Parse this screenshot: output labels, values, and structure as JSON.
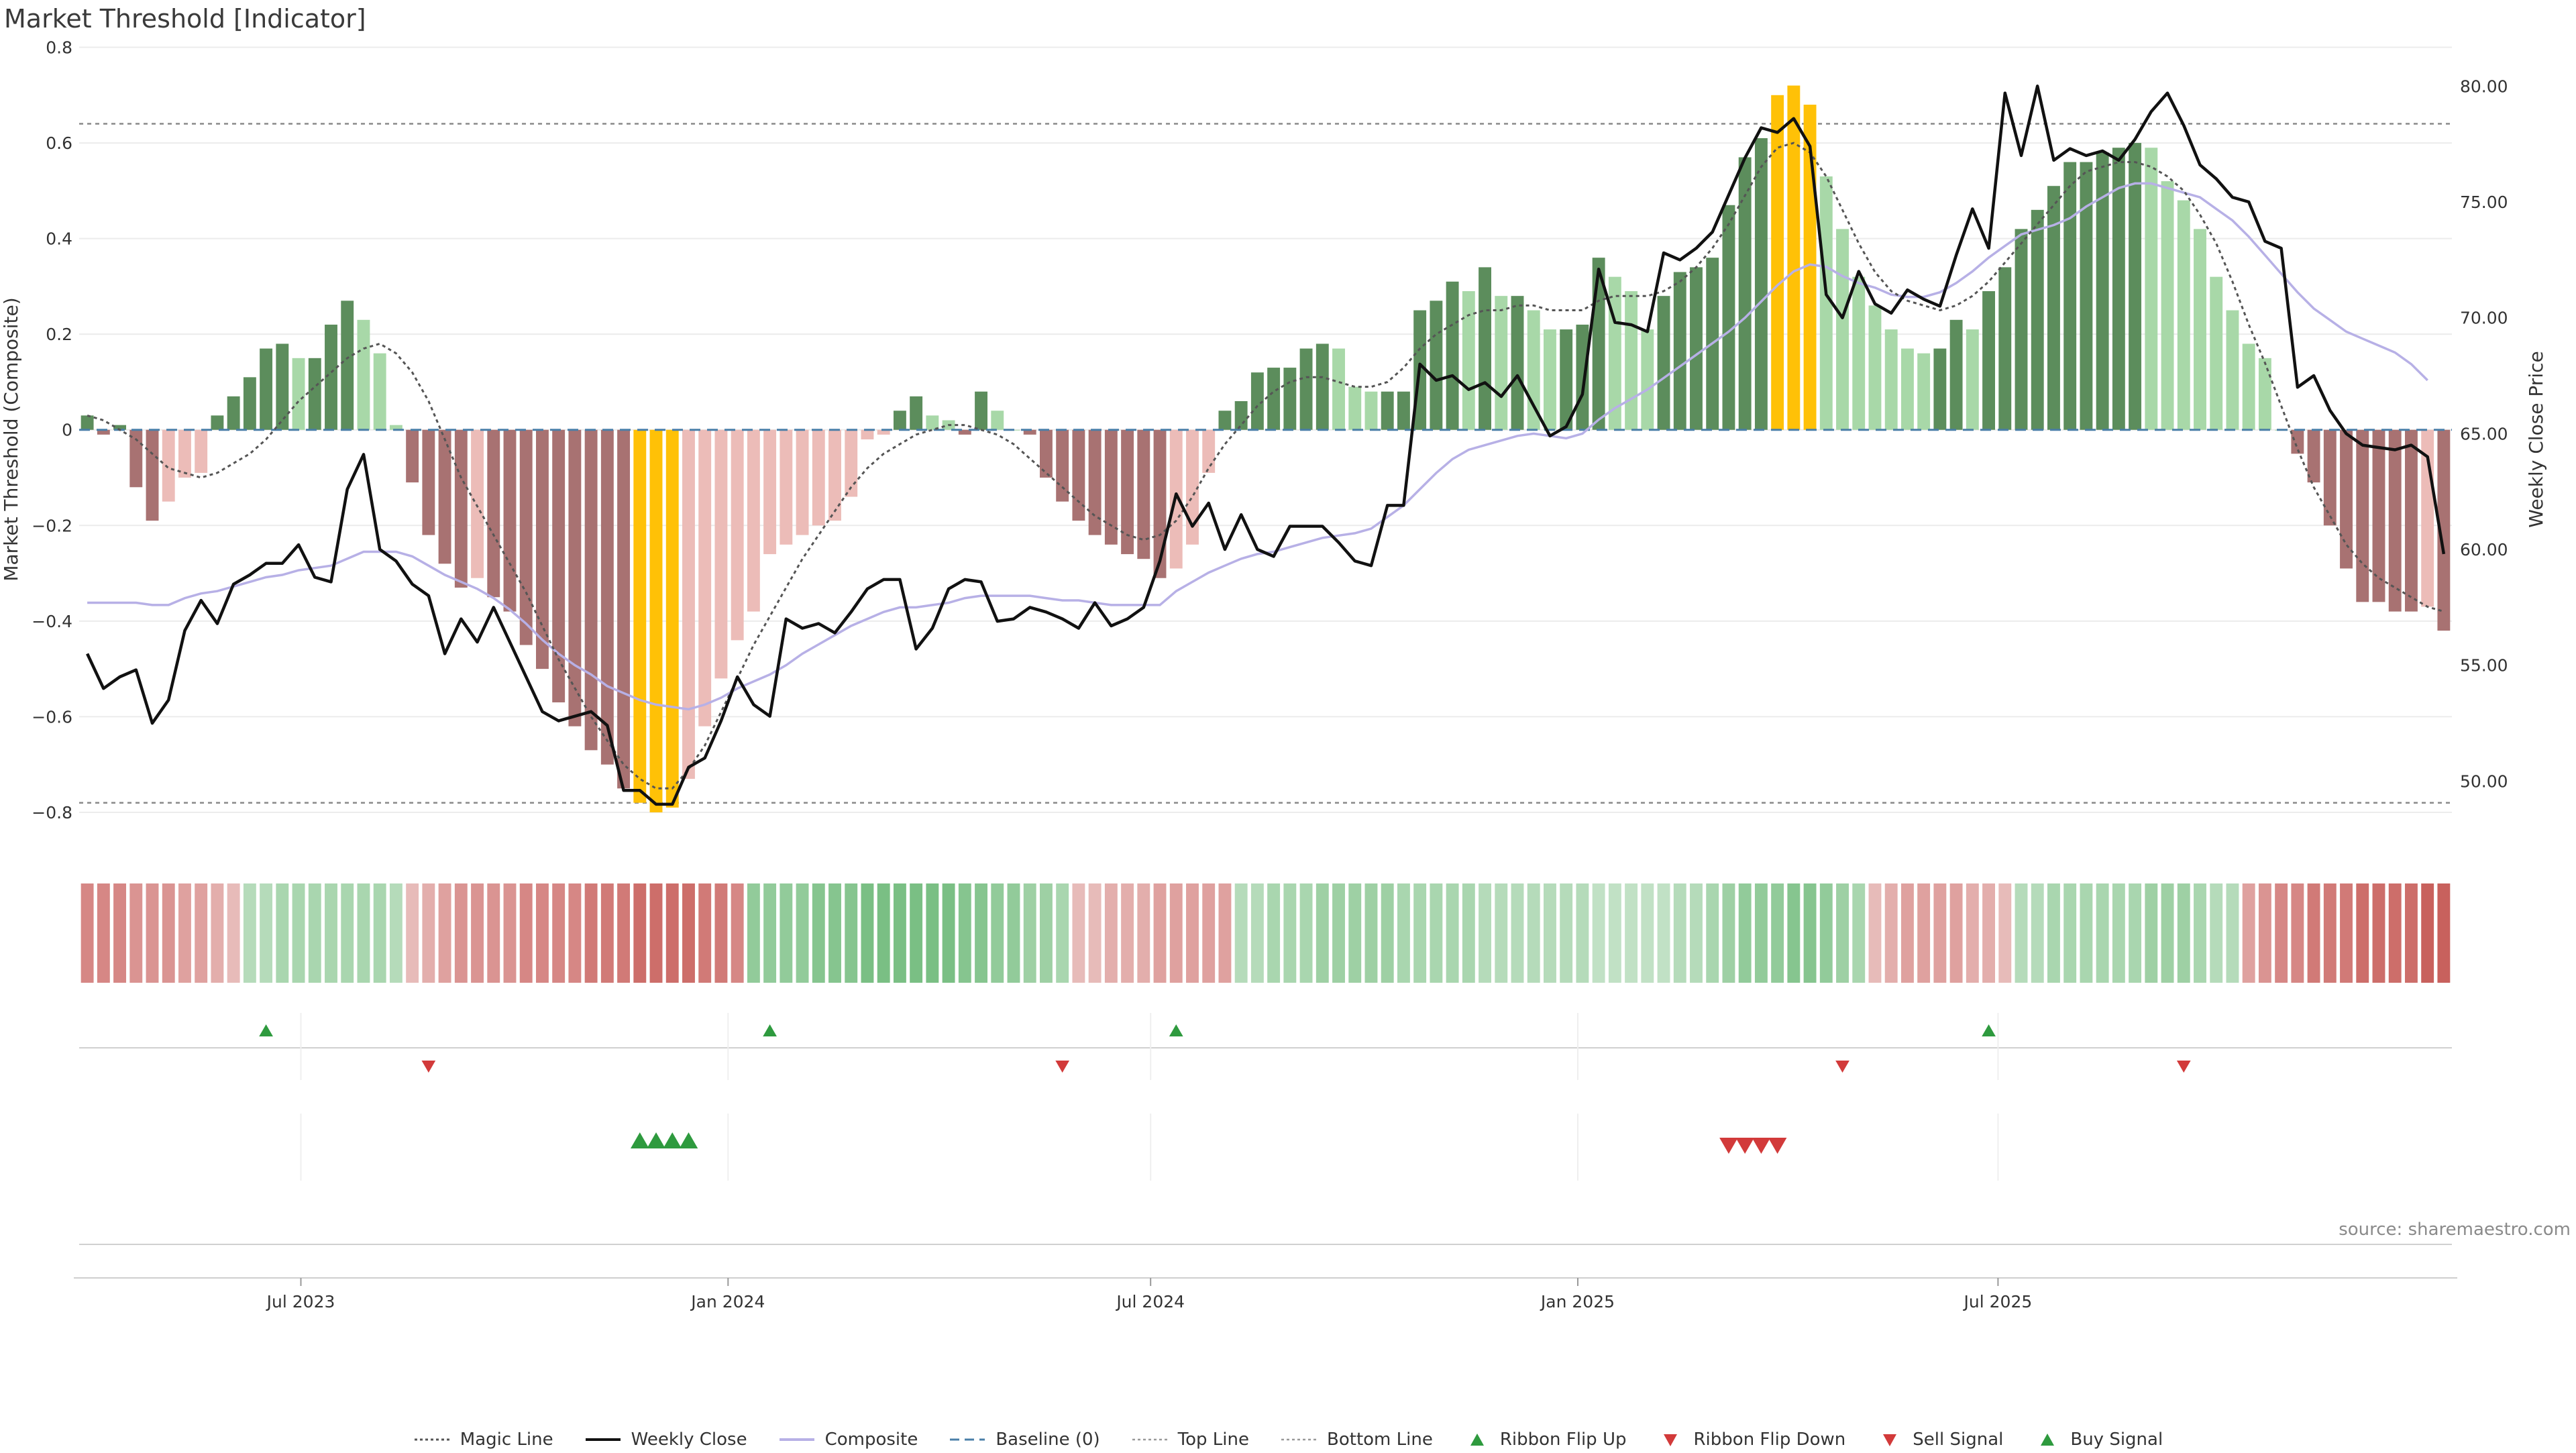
{
  "title": "Market Threshold [Indicator]",
  "source": "source: sharemaestro.com",
  "colors": {
    "strong_pos": "#5c8d5c",
    "weak_pos": "#a8d8a8",
    "strong_neg": "#a87272",
    "weak_neg": "#ecbcb8",
    "extreme": "#ffc107",
    "weekly_close": "#111111",
    "composite": "#b7b0e6",
    "magic_line": "#555555",
    "baseline": "#4a7fa8",
    "buy": "#2e9a3e",
    "sell": "#d23a3a"
  },
  "legend": [
    {
      "label": "Magic Line",
      "icon": "dotted-line-icon"
    },
    {
      "label": "Weekly Close",
      "icon": "solid-line-icon"
    },
    {
      "label": "Composite",
      "icon": "lavender-line-icon"
    },
    {
      "label": "Baseline (0)",
      "icon": "dashed-line-icon"
    },
    {
      "label": "Top Line",
      "icon": "dotted-gray-line-icon"
    },
    {
      "label": "Bottom Line",
      "icon": "dotted-gray-line-icon"
    },
    {
      "label": "Ribbon Flip Up",
      "icon": "triangle-up-icon"
    },
    {
      "label": "Ribbon Flip Down",
      "icon": "triangle-down-icon"
    },
    {
      "label": "Sell Signal",
      "icon": "triangle-down-icon"
    },
    {
      "label": "Buy Signal",
      "icon": "triangle-up-icon"
    }
  ],
  "chart_data": {
    "type": "bar",
    "start_date": "2023-03-31",
    "left_axis": {
      "label": "Market Threshold (Composite)",
      "ylim": [
        -0.88,
        0.84
      ],
      "ticks": [
        -0.8,
        -0.6,
        -0.4,
        -0.2,
        0,
        0.2,
        0.4,
        0.6,
        0.8
      ],
      "tick_labels": [
        "−0.8",
        "−0.6",
        "−0.4",
        "−0.2",
        "0",
        "0.2",
        "0.4",
        "0.6",
        "0.8"
      ]
    },
    "right_axis": {
      "label": "Weekly Close Price",
      "ylim": [
        47.0,
        82.5
      ],
      "ticks": [
        50,
        55,
        60,
        65,
        70,
        75,
        80
      ],
      "tick_labels": [
        "50.00",
        "55.00",
        "60.00",
        "65.00",
        "70.00",
        "75.00",
        "80.00"
      ]
    },
    "x_ticks": [
      {
        "date": "2023-07-01",
        "label": "Jul 2023"
      },
      {
        "date": "2024-01-01",
        "label": "Jan 2024"
      },
      {
        "date": "2024-07-01",
        "label": "Jul 2024"
      },
      {
        "date": "2025-01-01",
        "label": "Jan 2025"
      },
      {
        "date": "2025-07-01",
        "label": "Jul 2025"
      }
    ],
    "top_line": 0.64,
    "bottom_line": -0.78,
    "baseline": 0,
    "series": [
      {
        "name": "Market Threshold",
        "key": "composite_bars",
        "values": [
          0.03,
          -0.01,
          0.01,
          -0.12,
          -0.19,
          -0.15,
          -0.1,
          -0.09,
          0.03,
          0.07,
          0.11,
          0.17,
          0.18,
          0.15,
          0.15,
          0.22,
          0.27,
          0.23,
          0.16,
          0.01,
          -0.11,
          -0.22,
          -0.28,
          -0.33,
          -0.31,
          -0.35,
          -0.38,
          -0.45,
          -0.5,
          -0.57,
          -0.62,
          -0.67,
          -0.7,
          -0.75,
          -0.78,
          -0.8,
          -0.79,
          -0.73,
          -0.62,
          -0.52,
          -0.44,
          -0.38,
          -0.26,
          -0.24,
          -0.22,
          -0.2,
          -0.19,
          -0.14,
          -0.02,
          -0.01,
          0.04,
          0.07,
          0.03,
          0.02,
          -0.01,
          0.08,
          0.04,
          0.0,
          -0.01,
          -0.1,
          -0.15,
          -0.19,
          -0.22,
          -0.24,
          -0.26,
          -0.27,
          -0.31,
          -0.29,
          -0.24,
          -0.09,
          0.04,
          0.06,
          0.12,
          0.13,
          0.13,
          0.17,
          0.18,
          0.17,
          0.09,
          0.08,
          0.08,
          0.08,
          0.25,
          0.27,
          0.31,
          0.29,
          0.34,
          0.28,
          0.28,
          0.25,
          0.21,
          0.21,
          0.22,
          0.36,
          0.32,
          0.29,
          0.21,
          0.28,
          0.33,
          0.34,
          0.36,
          0.47,
          0.57,
          0.61,
          0.7,
          0.72,
          0.68,
          0.53,
          0.42,
          0.32,
          0.26,
          0.21,
          0.17,
          0.16,
          0.17,
          0.23,
          0.21,
          0.29,
          0.34,
          0.42,
          0.46,
          0.51,
          0.56,
          0.56,
          0.58,
          0.59,
          0.6,
          0.59,
          0.52,
          0.48,
          0.42,
          0.32,
          0.25,
          0.18,
          0.15,
          0.0,
          -0.05,
          -0.11,
          -0.2,
          -0.29,
          -0.36,
          -0.36,
          -0.38,
          -0.38,
          -0.37,
          -0.42
        ]
      },
      {
        "name": "Weekly Close",
        "key": "weekly_close",
        "values": [
          55.5,
          54.0,
          54.5,
          54.8,
          52.5,
          53.5,
          56.5,
          57.8,
          56.8,
          58.5,
          58.9,
          59.4,
          59.4,
          60.2,
          58.8,
          58.6,
          62.6,
          64.1,
          60.0,
          59.5,
          58.5,
          58.0,
          55.5,
          57.0,
          56.0,
          57.5,
          56.0,
          54.5,
          53.0,
          52.6,
          52.8,
          53.0,
          52.4,
          49.6,
          49.6,
          49.0,
          49.0,
          50.6,
          51.0,
          52.6,
          54.5,
          53.3,
          52.8,
          57.0,
          56.6,
          56.8,
          56.4,
          57.3,
          58.3,
          58.7,
          58.7,
          55.7,
          56.6,
          58.3,
          58.7,
          58.6,
          56.9,
          57.0,
          57.5,
          57.3,
          57.0,
          56.6,
          57.7,
          56.7,
          57.0,
          57.5,
          59.5,
          62.4,
          61.0,
          62.0,
          60.0,
          61.5,
          60.0,
          59.7,
          61.0,
          61.0,
          61.0,
          60.3,
          59.5,
          59.3,
          61.9,
          61.9,
          68.0,
          67.3,
          67.5,
          66.9,
          67.2,
          66.6,
          67.5,
          66.2,
          64.9,
          65.3,
          66.7,
          72.1,
          69.8,
          69.7,
          69.4,
          72.8,
          72.5,
          73.0,
          73.7,
          75.3,
          76.9,
          78.2,
          78.0,
          78.6,
          77.4,
          71.0,
          70.0,
          72.0,
          70.6,
          70.2,
          71.2,
          70.8,
          70.5,
          72.7,
          74.7,
          73.0,
          79.7,
          77.0,
          80.0,
          76.8,
          77.3,
          77.0,
          77.2,
          76.8,
          77.7,
          78.9,
          79.7,
          78.3,
          76.6,
          76.0,
          75.2,
          75.0,
          73.3,
          73.0,
          67.0,
          67.5,
          66.0,
          65.0,
          64.5,
          64.4,
          64.3,
          64.5,
          64.0,
          59.8
        ]
      },
      {
        "name": "Composite",
        "key": "composite_ma",
        "values": [
          57.7,
          57.7,
          57.7,
          57.7,
          57.6,
          57.6,
          57.9,
          58.1,
          58.2,
          58.4,
          58.6,
          58.8,
          58.9,
          59.1,
          59.2,
          59.3,
          59.6,
          59.9,
          59.9,
          59.9,
          59.7,
          59.3,
          58.9,
          58.6,
          58.3,
          57.9,
          57.4,
          56.8,
          56.1,
          55.5,
          55.0,
          54.6,
          54.1,
          53.8,
          53.5,
          53.3,
          53.2,
          53.1,
          53.3,
          53.6,
          54.0,
          54.3,
          54.6,
          55.0,
          55.5,
          55.9,
          56.3,
          56.7,
          57.0,
          57.3,
          57.5,
          57.5,
          57.6,
          57.7,
          57.9,
          58.0,
          58.0,
          58.0,
          58.0,
          57.9,
          57.8,
          57.8,
          57.7,
          57.6,
          57.6,
          57.6,
          57.6,
          58.2,
          58.6,
          59.0,
          59.3,
          59.6,
          59.8,
          59.9,
          60.1,
          60.3,
          60.5,
          60.6,
          60.7,
          60.9,
          61.4,
          61.9,
          62.6,
          63.3,
          63.9,
          64.3,
          64.5,
          64.7,
          64.9,
          65.0,
          64.9,
          64.8,
          65.0,
          65.6,
          66.1,
          66.5,
          66.9,
          67.4,
          67.9,
          68.4,
          68.9,
          69.4,
          70.0,
          70.7,
          71.4,
          72.0,
          72.3,
          72.2,
          71.8,
          71.5,
          71.3,
          71.0,
          70.9,
          70.9,
          71.1,
          71.5,
          72.0,
          72.6,
          73.1,
          73.6,
          73.8,
          74.0,
          74.3,
          74.8,
          75.2,
          75.6,
          75.8,
          75.8,
          75.6,
          75.4,
          75.2,
          74.7,
          74.2,
          73.5,
          72.7,
          71.9,
          71.1,
          70.4,
          69.9,
          69.4,
          69.1,
          68.8,
          68.5,
          68.0,
          67.3
        ]
      },
      {
        "name": "Magic Line",
        "key": "magic_line",
        "values": [
          0.03,
          0.02,
          0.0,
          -0.02,
          -0.05,
          -0.08,
          -0.09,
          -0.1,
          -0.09,
          -0.07,
          -0.05,
          -0.02,
          0.02,
          0.06,
          0.09,
          0.12,
          0.15,
          0.17,
          0.18,
          0.16,
          0.12,
          0.06,
          -0.02,
          -0.1,
          -0.16,
          -0.22,
          -0.28,
          -0.34,
          -0.41,
          -0.48,
          -0.54,
          -0.6,
          -0.65,
          -0.7,
          -0.73,
          -0.75,
          -0.75,
          -0.71,
          -0.66,
          -0.59,
          -0.52,
          -0.45,
          -0.39,
          -0.33,
          -0.27,
          -0.22,
          -0.17,
          -0.12,
          -0.08,
          -0.05,
          -0.03,
          -0.01,
          0.0,
          0.01,
          0.01,
          0.0,
          -0.01,
          -0.03,
          -0.06,
          -0.09,
          -0.12,
          -0.15,
          -0.18,
          -0.2,
          -0.22,
          -0.23,
          -0.22,
          -0.19,
          -0.14,
          -0.08,
          -0.03,
          0.01,
          0.05,
          0.08,
          0.1,
          0.11,
          0.11,
          0.1,
          0.09,
          0.09,
          0.1,
          0.13,
          0.17,
          0.2,
          0.22,
          0.24,
          0.25,
          0.25,
          0.26,
          0.26,
          0.25,
          0.25,
          0.25,
          0.27,
          0.28,
          0.28,
          0.28,
          0.29,
          0.31,
          0.34,
          0.38,
          0.43,
          0.49,
          0.55,
          0.59,
          0.6,
          0.58,
          0.53,
          0.46,
          0.39,
          0.33,
          0.29,
          0.27,
          0.26,
          0.25,
          0.26,
          0.28,
          0.31,
          0.35,
          0.39,
          0.43,
          0.47,
          0.51,
          0.54,
          0.55,
          0.56,
          0.56,
          0.55,
          0.53,
          0.5,
          0.45,
          0.39,
          0.31,
          0.22,
          0.14,
          0.05,
          -0.04,
          -0.12,
          -0.18,
          -0.24,
          -0.28,
          -0.31,
          -0.33,
          -0.35,
          -0.37,
          -0.38
        ]
      },
      {
        "name": "Ribbon",
        "key": "ribbon",
        "values": [
          -0.6,
          -0.6,
          -0.6,
          -0.5,
          -0.5,
          -0.5,
          -0.4,
          -0.4,
          -0.3,
          -0.2,
          0.3,
          0.3,
          0.4,
          0.4,
          0.4,
          0.4,
          0.4,
          0.4,
          0.4,
          0.3,
          -0.2,
          -0.3,
          -0.4,
          -0.5,
          -0.5,
          -0.5,
          -0.5,
          -0.6,
          -0.6,
          -0.6,
          -0.6,
          -0.7,
          -0.7,
          -0.7,
          -0.8,
          -0.8,
          -0.8,
          -0.8,
          -0.7,
          -0.7,
          -0.6,
          0.6,
          0.6,
          0.6,
          0.6,
          0.7,
          0.7,
          0.7,
          0.8,
          0.8,
          0.8,
          0.8,
          0.8,
          0.8,
          0.7,
          0.7,
          0.6,
          0.6,
          0.5,
          0.5,
          0.4,
          -0.2,
          -0.2,
          -0.3,
          -0.3,
          -0.3,
          -0.4,
          -0.4,
          -0.4,
          -0.4,
          -0.4,
          0.3,
          0.3,
          0.4,
          0.4,
          0.4,
          0.5,
          0.5,
          0.5,
          0.5,
          0.5,
          0.4,
          0.4,
          0.4,
          0.4,
          0.4,
          0.3,
          0.3,
          0.3,
          0.3,
          0.3,
          0.3,
          0.3,
          0.2,
          0.2,
          0.2,
          0.2,
          0.2,
          0.3,
          0.3,
          0.4,
          0.5,
          0.6,
          0.6,
          0.6,
          0.7,
          0.7,
          0.6,
          0.5,
          0.4,
          -0.2,
          -0.3,
          -0.4,
          -0.4,
          -0.4,
          -0.4,
          -0.3,
          -0.3,
          -0.2,
          0.3,
          0.3,
          0.4,
          0.4,
          0.4,
          0.4,
          0.4,
          0.4,
          0.5,
          0.5,
          0.5,
          0.4,
          0.3,
          0.3,
          -0.4,
          -0.5,
          -0.6,
          -0.6,
          -0.7,
          -0.7,
          -0.7,
          -0.8,
          -0.8,
          -0.8,
          -0.8,
          -0.9,
          -0.9,
          -0.8
        ]
      }
    ],
    "ribbon_flip_up": [
      11,
      42,
      67,
      117
    ],
    "ribbon_flip_down": [
      21,
      60,
      108,
      129
    ],
    "buy_signal": [
      34,
      35,
      36,
      37
    ],
    "sell_signal": [
      101,
      102,
      103,
      104
    ]
  }
}
